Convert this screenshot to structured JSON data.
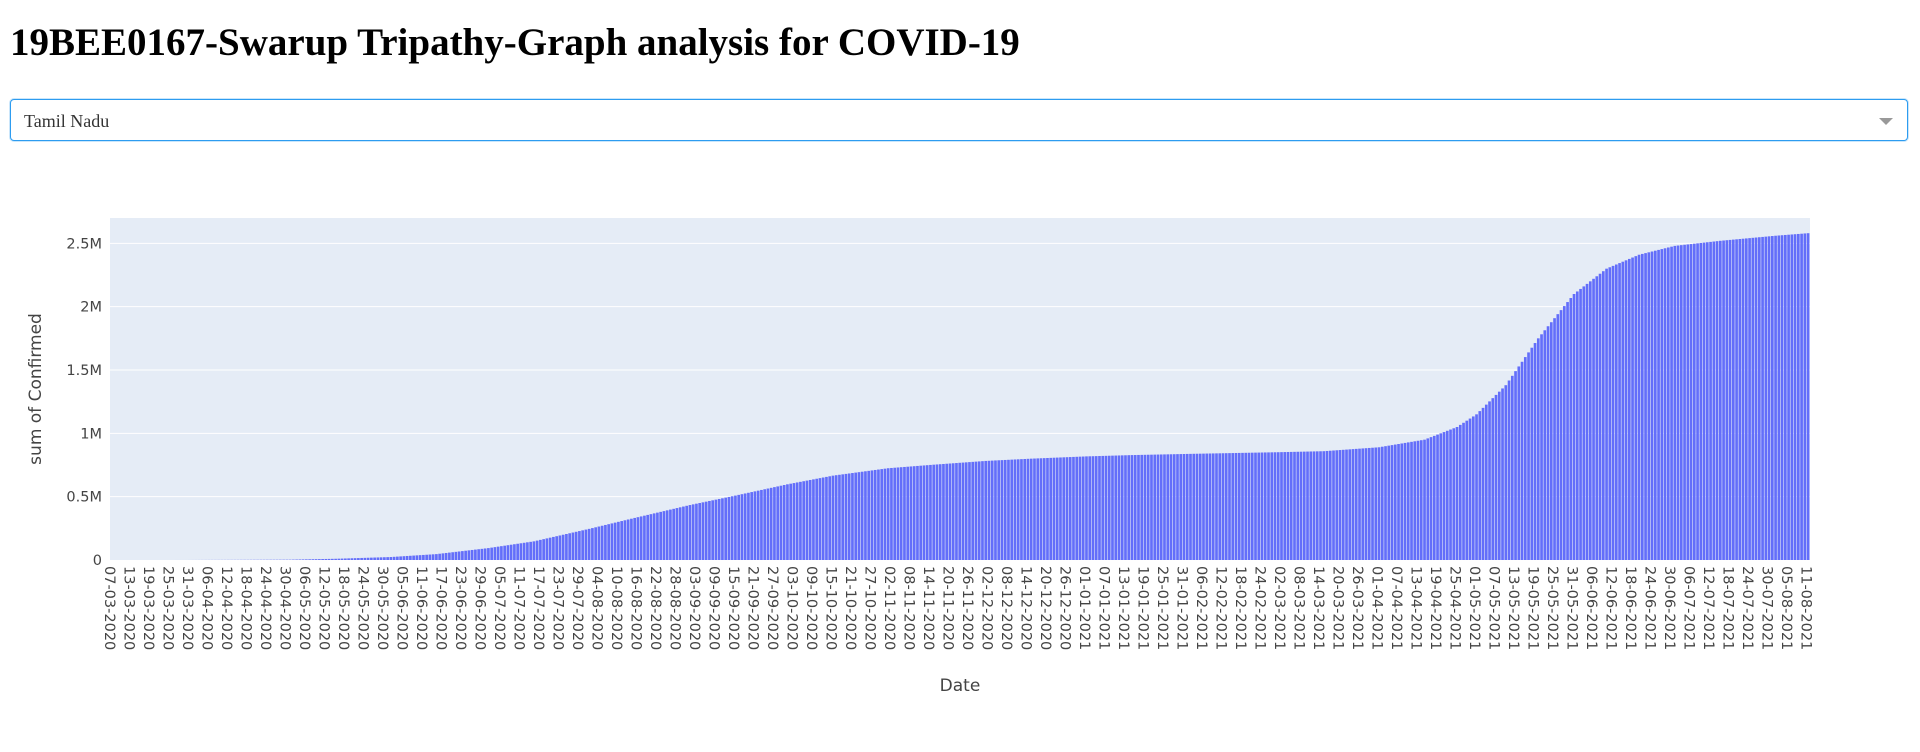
{
  "page": {
    "title": "19BEE0167-Swarup Tripathy-Graph analysis for COVID-19"
  },
  "dropdown": {
    "selected": "Tamil Nadu"
  },
  "colors": {
    "bar": "#636efa",
    "plot_bg": "#e5ecf6",
    "grid": "#ffffff",
    "focus_border": "#2d9cf0"
  },
  "chart_data": {
    "type": "bar",
    "xlabel": "Date",
    "ylabel": "sum of Confirmed",
    "x_range": [
      "2020-03-07",
      "2021-08-11"
    ],
    "ylim": [
      0,
      2700000
    ],
    "y_ticks": [
      0,
      500000,
      1000000,
      1500000,
      2000000,
      2500000
    ],
    "y_tick_labels": [
      "0",
      "0.5M",
      "1M",
      "1.5M",
      "2M",
      "2.5M"
    ],
    "x_tick_labels": [
      "07-03-2020",
      "13-03-2020",
      "19-03-2020",
      "25-03-2020",
      "31-03-2020",
      "06-04-2020",
      "12-04-2020",
      "18-04-2020",
      "24-04-2020",
      "30-04-2020",
      "06-05-2020",
      "12-05-2020",
      "18-05-2020",
      "24-05-2020",
      "30-05-2020",
      "05-06-2020",
      "11-06-2020",
      "17-06-2020",
      "23-06-2020",
      "29-06-2020",
      "05-07-2020",
      "11-07-2020",
      "17-07-2020",
      "23-07-2020",
      "29-07-2020",
      "04-08-2020",
      "10-08-2020",
      "16-08-2020",
      "22-08-2020",
      "28-08-2020",
      "03-09-2020",
      "09-09-2020",
      "15-09-2020",
      "21-09-2020",
      "27-09-2020",
      "03-10-2020",
      "09-10-2020",
      "15-10-2020",
      "21-10-2020",
      "27-10-2020",
      "02-11-2020",
      "08-11-2020",
      "14-11-2020",
      "20-11-2020",
      "26-11-2020",
      "02-12-2020",
      "08-12-2020",
      "14-12-2020",
      "20-12-2020",
      "26-12-2020",
      "01-01-2021",
      "07-01-2021",
      "13-01-2021",
      "19-01-2021",
      "25-01-2021",
      "31-01-2021",
      "06-02-2021",
      "12-02-2021",
      "18-02-2021",
      "24-02-2021",
      "02-03-2021",
      "08-03-2021",
      "14-03-2021",
      "20-03-2021",
      "26-03-2021",
      "01-04-2021",
      "07-04-2021",
      "13-04-2021",
      "19-04-2021",
      "25-04-2021",
      "01-05-2021",
      "07-05-2021",
      "13-05-2021",
      "19-05-2021",
      "25-05-2021",
      "31-05-2021",
      "06-06-2021",
      "12-06-2021",
      "18-06-2021",
      "24-06-2021",
      "30-06-2021",
      "06-07-2021",
      "12-07-2021",
      "18-07-2021",
      "24-07-2021",
      "30-07-2021",
      "05-08-2021",
      "11-08-2021"
    ],
    "series_keypoints": [
      {
        "date": "2020-03-07",
        "value": 1
      },
      {
        "date": "2020-03-25",
        "value": 18
      },
      {
        "date": "2020-03-31",
        "value": 124
      },
      {
        "date": "2020-04-06",
        "value": 621
      },
      {
        "date": "2020-04-18",
        "value": 1372
      },
      {
        "date": "2020-05-01",
        "value": 2526
      },
      {
        "date": "2020-05-15",
        "value": 9674
      },
      {
        "date": "2020-06-01",
        "value": 23495
      },
      {
        "date": "2020-06-15",
        "value": 46504
      },
      {
        "date": "2020-07-01",
        "value": 94049
      },
      {
        "date": "2020-07-15",
        "value": 147324
      },
      {
        "date": "2020-08-01",
        "value": 245859
      },
      {
        "date": "2020-08-15",
        "value": 332105
      },
      {
        "date": "2020-09-01",
        "value": 433969
      },
      {
        "date": "2020-09-15",
        "value": 508511
      },
      {
        "date": "2020-10-01",
        "value": 597602
      },
      {
        "date": "2020-10-15",
        "value": 665930
      },
      {
        "date": "2020-11-01",
        "value": 724522
      },
      {
        "date": "2020-11-15",
        "value": 752521
      },
      {
        "date": "2020-12-01",
        "value": 782139
      },
      {
        "date": "2020-12-15",
        "value": 800029
      },
      {
        "date": "2021-01-01",
        "value": 818014
      },
      {
        "date": "2021-01-15",
        "value": 828287
      },
      {
        "date": "2021-02-01",
        "value": 837400
      },
      {
        "date": "2021-02-15",
        "value": 844300
      },
      {
        "date": "2021-03-01",
        "value": 851000
      },
      {
        "date": "2021-03-15",
        "value": 859000
      },
      {
        "date": "2021-04-01",
        "value": 890000
      },
      {
        "date": "2021-04-15",
        "value": 950000
      },
      {
        "date": "2021-04-25",
        "value": 1050000
      },
      {
        "date": "2021-05-01",
        "value": 1150000
      },
      {
        "date": "2021-05-10",
        "value": 1380000
      },
      {
        "date": "2021-05-20",
        "value": 1750000
      },
      {
        "date": "2021-05-31",
        "value": 2100000
      },
      {
        "date": "2021-06-10",
        "value": 2300000
      },
      {
        "date": "2021-06-20",
        "value": 2410000
      },
      {
        "date": "2021-07-01",
        "value": 2480000
      },
      {
        "date": "2021-07-15",
        "value": 2520000
      },
      {
        "date": "2021-08-01",
        "value": 2560000
      },
      {
        "date": "2021-08-11",
        "value": 2580000
      }
    ]
  }
}
